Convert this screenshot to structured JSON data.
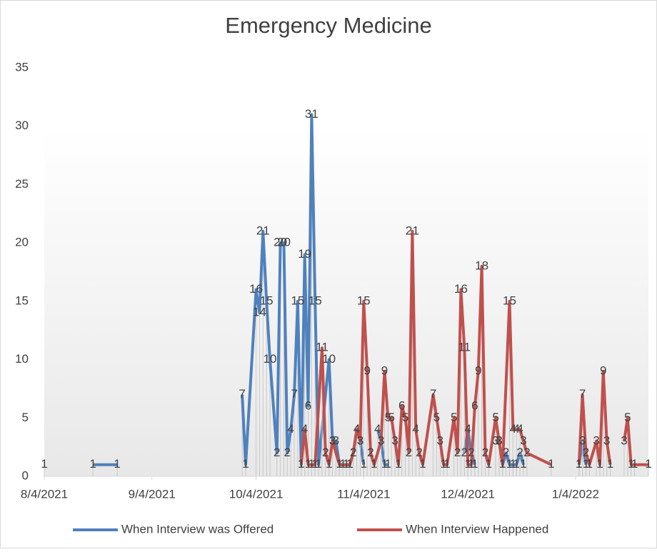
{
  "chart_data": {
    "type": "line",
    "title": "Emergency Medicine",
    "xlim": [
      "2021-08-04",
      "2022-01-25"
    ],
    "xticks": [
      {
        "value": "2021-08-04",
        "label": "8/4/2021"
      },
      {
        "value": "2021-09-04",
        "label": "9/4/2021"
      },
      {
        "value": "2021-10-04",
        "label": "10/4/2021"
      },
      {
        "value": "2021-11-04",
        "label": "11/4/2021"
      },
      {
        "value": "2021-12-04",
        "label": "12/4/2021"
      },
      {
        "value": "2022-01-04",
        "label": "1/4/2022"
      }
    ],
    "ylim": [
      0,
      35
    ],
    "yticks": [
      0,
      5,
      10,
      15,
      20,
      25,
      30,
      35
    ],
    "legend": "bottom",
    "drop_lines": true,
    "series": [
      {
        "name": "When Interview was Offered",
        "color": "#4f81bd",
        "x": [
          "2021-08-04",
          "2021-08-11",
          "2021-08-18",
          "2021-08-25",
          "2021-09-15",
          "2021-09-30",
          "2021-10-01",
          "2021-10-04",
          "2021-10-05",
          "2021-10-06",
          "2021-10-07",
          "2021-10-08",
          "2021-10-10",
          "2021-10-11",
          "2021-10-12",
          "2021-10-13",
          "2021-10-14",
          "2021-10-15",
          "2021-10-16",
          "2021-10-17",
          "2021-10-18",
          "2021-10-19",
          "2021-10-20",
          "2021-10-21",
          "2021-10-22",
          "2021-10-25",
          "2021-10-26",
          "2021-10-27",
          "2021-10-28",
          "2021-10-29",
          "2021-10-30",
          "2021-10-31",
          "2021-11-01",
          "2021-11-02",
          "2021-11-03",
          "2021-11-04",
          "2021-11-06",
          "2021-11-08",
          "2021-11-09",
          "2021-11-10",
          "2021-11-11",
          "2021-11-20",
          "2021-12-03",
          "2021-12-04",
          "2021-12-05",
          "2021-12-06",
          "2021-12-09",
          "2021-12-12",
          "2021-12-13",
          "2021-12-14",
          "2021-12-15",
          "2021-12-16",
          "2021-12-17",
          "2021-12-18",
          "2021-12-19",
          "2021-12-20",
          "2021-12-25",
          "2022-01-05",
          "2022-01-06",
          "2022-01-07"
        ],
        "values": [
          1,
          null,
          1,
          1,
          null,
          7,
          1,
          16,
          14,
          21,
          15,
          10,
          2,
          20,
          20,
          2,
          4,
          7,
          15,
          1,
          19,
          6,
          31,
          15,
          1,
          10,
          3,
          3,
          1,
          1,
          1,
          1,
          2,
          4,
          3,
          1,
          null,
          4,
          3,
          1,
          1,
          null,
          2,
          4,
          2,
          1,
          null,
          3,
          3,
          1,
          2,
          1,
          1,
          1,
          2,
          1,
          null,
          1,
          3,
          1
        ]
      },
      {
        "name": "When Interview Happened",
        "color": "#c0504d",
        "x": [
          "2021-10-17",
          "2021-10-18",
          "2021-10-19",
          "2021-10-20",
          "2021-10-21",
          "2021-10-23",
          "2021-10-24",
          "2021-10-25",
          "2021-10-26",
          "2021-10-28",
          "2021-10-31",
          "2021-11-01",
          "2021-11-02",
          "2021-11-03",
          "2021-11-04",
          "2021-11-05",
          "2021-11-06",
          "2021-11-07",
          "2021-11-09",
          "2021-11-10",
          "2021-11-11",
          "2021-11-12",
          "2021-11-13",
          "2021-11-14",
          "2021-11-15",
          "2021-11-16",
          "2021-11-17",
          "2021-11-18",
          "2021-11-19",
          "2021-11-20",
          "2021-11-21",
          "2021-11-24",
          "2021-11-25",
          "2021-11-26",
          "2021-11-27",
          "2021-11-28",
          "2021-11-30",
          "2021-12-01",
          "2021-12-02",
          "2021-12-03",
          "2021-12-04",
          "2021-12-05",
          "2021-12-06",
          "2021-12-07",
          "2021-12-08",
          "2021-12-09",
          "2021-12-10",
          "2021-12-12",
          "2021-12-13",
          "2021-12-14",
          "2021-12-16",
          "2021-12-17",
          "2021-12-18",
          "2021-12-19",
          "2021-12-20",
          "2021-12-21",
          "2021-12-28",
          "2021-12-31",
          "2022-01-05",
          "2022-01-06",
          "2022-01-07",
          "2022-01-08",
          "2022-01-10",
          "2022-01-11",
          "2022-01-12",
          "2022-01-13",
          "2022-01-14",
          "2022-01-16",
          "2022-01-18",
          "2022-01-19",
          "2022-01-20",
          "2022-01-21",
          "2022-01-25"
        ],
        "values": [
          1,
          4,
          1,
          1,
          1,
          11,
          2,
          1,
          3,
          1,
          1,
          2,
          4,
          3,
          15,
          9,
          2,
          1,
          3,
          9,
          5,
          5,
          3,
          1,
          6,
          5,
          2,
          21,
          4,
          2,
          1,
          7,
          5,
          3,
          1,
          1,
          5,
          2,
          16,
          11,
          1,
          1,
          6,
          9,
          18,
          2,
          1,
          5,
          3,
          1,
          15,
          4,
          4,
          4,
          3,
          2,
          1,
          null,
          1,
          7,
          2,
          1,
          3,
          1,
          9,
          3,
          1,
          null,
          3,
          5,
          1,
          1,
          1
        ]
      }
    ]
  }
}
